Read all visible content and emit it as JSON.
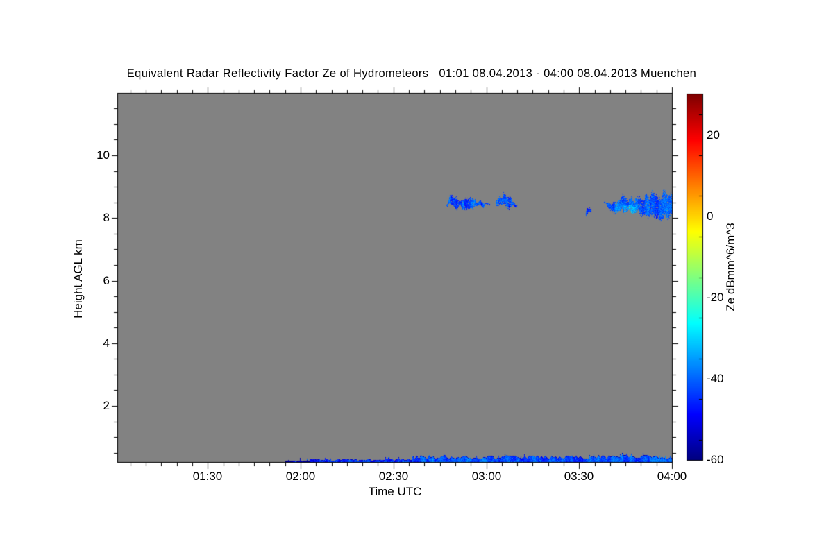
{
  "title": "Equivalent Radar Reflectivity Factor Ze of Hydrometeors   01:01 08.04.2013 - 04:00 08.04.2013 Muenchen",
  "chart_data": {
    "type": "heatmap",
    "title": "Equivalent Radar Reflectivity Factor Ze of Hydrometeors",
    "time_range_label": "01:01 08.04.2013 - 04:00 08.04.2013",
    "station": "Muenchen",
    "xlabel": "Time UTC",
    "ylabel": "Height AGL km",
    "x_start": "01:01",
    "x_end": "04:00",
    "x_tick_labels": [
      "01:30",
      "02:00",
      "02:30",
      "03:00",
      "03:30",
      "04:00"
    ],
    "x_minor_tick_minutes": 5,
    "y_tick_labels": [
      "2",
      "4",
      "6",
      "8",
      "10"
    ],
    "y_ticks_km": [
      2,
      4,
      6,
      8,
      10
    ],
    "y_minor_tick_km": 0.5,
    "y_range_km": [
      0.2,
      12.0
    ],
    "grid": false,
    "no_signal_color": "#828282",
    "colorbar": {
      "label": "Ze dBmm^6/m^3",
      "colormap": "jet",
      "range_db": [
        -60,
        30
      ],
      "tick_labels": [
        "20",
        "0",
        "-20",
        "-40",
        "-60"
      ],
      "tick_values": [
        20,
        0,
        -20,
        -40,
        -60
      ],
      "minor_tick_values": [
        -55,
        -45,
        -35,
        -25,
        -15,
        -5,
        5,
        15,
        25
      ]
    },
    "features": {
      "cloud_patches": [
        {
          "time_start": "02:47",
          "time_end": "03:01",
          "base_start_km": 8.3,
          "base_end_km": 8.45,
          "top_start_km": 8.72,
          "top_end_km": 8.56,
          "ze_db_mean": -42
        },
        {
          "time_start": "03:03",
          "time_end": "03:10",
          "base_start_km": 8.27,
          "base_end_km": 8.35,
          "top_start_km": 8.78,
          "top_end_km": 8.6,
          "ze_db_mean": -41
        },
        {
          "time_start": "03:32",
          "time_end": "03:34",
          "base_start_km": 8.1,
          "base_end_km": 8.15,
          "top_start_km": 8.27,
          "top_end_km": 8.22,
          "ze_db_mean": -46
        },
        {
          "time_start": "03:38",
          "time_end": "04:00",
          "base_start_km": 8.3,
          "base_end_km": 7.95,
          "top_start_km": 8.55,
          "top_end_km": 8.85,
          "ze_db_mean": -40,
          "bright_core": true,
          "extends_to_edge": true
        }
      ],
      "surface_layer": {
        "segments": [
          {
            "time_start": "01:55",
            "time_end": "02:03",
            "height_top_km": 0.27,
            "ze_db_mean": -56
          },
          {
            "time_start": "02:03",
            "time_end": "02:36",
            "height_top_km": 0.3,
            "ze_db_mean": -45
          },
          {
            "time_start": "02:36",
            "time_end": "04:00",
            "height_top_km": 0.42,
            "ze_db_mean": -42
          }
        ]
      }
    }
  }
}
